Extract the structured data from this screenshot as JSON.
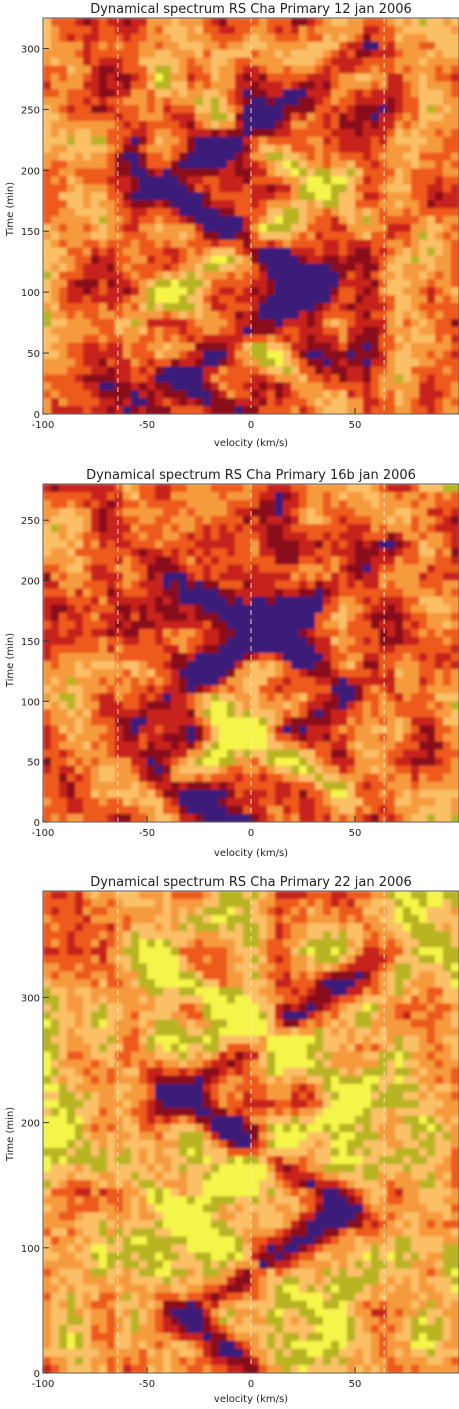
{
  "chart_data": [
    {
      "type": "heatmap",
      "title": "Dynamical spectrum  RS Cha Primary 12 jan 2006",
      "xlabel": "velocity (km/s)",
      "ylabel": "Time (min)",
      "xlim": [
        -100,
        100
      ],
      "ylim": [
        0,
        325
      ],
      "xticks": [
        -100,
        -50,
        0,
        50
      ],
      "yticks": [
        0,
        50,
        100,
        150,
        200,
        250,
        300
      ],
      "reference_lines_x": [
        -64,
        0,
        64
      ],
      "colorscale": [
        "#3a1c78",
        "#8a0f1c",
        "#c8201c",
        "#ee5a1c",
        "#f59a3c",
        "#fbbf66",
        "#b8b424",
        "#f4f44a"
      ],
      "seed": 12,
      "background_level": 0.42,
      "bands": [
        {
          "t0": 20,
          "v0": -30,
          "slope": 1.05,
          "dir": -1
        },
        {
          "t0": 95,
          "v0": -40,
          "slope": 0.95,
          "dir": -1
        },
        {
          "t0": 170,
          "v0": -30,
          "slope": 1.0,
          "dir": -1
        },
        {
          "t0": 250,
          "v0": -20,
          "slope": 1.1,
          "dir": -1
        },
        {
          "t0": 60,
          "v0": -10,
          "slope": 1.0,
          "dir": 1
        },
        {
          "t0": 140,
          "v0": -5,
          "slope": 1.0,
          "dir": 1
        },
        {
          "t0": 220,
          "v0": -15,
          "slope": 1.0,
          "dir": 1
        }
      ]
    },
    {
      "type": "heatmap",
      "title": "Dynamical spectrum  RS Cha Primary 16b jan 2006",
      "xlabel": "velocity (km/s)",
      "ylabel": "Time (min)",
      "xlim": [
        -100,
        100
      ],
      "ylim": [
        0,
        280
      ],
      "xticks": [
        -100,
        -50,
        0,
        50
      ],
      "yticks": [
        0,
        50,
        100,
        150,
        200,
        250
      ],
      "reference_lines_x": [
        -64,
        0,
        64
      ],
      "colorscale": [
        "#3a1c78",
        "#8a0f1c",
        "#c8201c",
        "#ee5a1c",
        "#f59a3c",
        "#fbbf66",
        "#b8b424",
        "#f4f44a"
      ],
      "seed": 16,
      "background_level": 0.4,
      "bands": [
        {
          "t0": 30,
          "v0": -40,
          "slope": 1.0,
          "dir": -1
        },
        {
          "t0": 110,
          "v0": -35,
          "slope": 1.0,
          "dir": -1
        },
        {
          "t0": 190,
          "v0": -25,
          "slope": 1.0,
          "dir": -1
        },
        {
          "t0": 70,
          "v0": -5,
          "slope": 1.0,
          "dir": 1
        },
        {
          "t0": 150,
          "v0": 0,
          "slope": 1.0,
          "dir": 1
        }
      ]
    },
    {
      "type": "heatmap",
      "title": "Dynamical spectrum  RS Cha Primary 22 jan 2006",
      "xlabel": "velocity (km/s)",
      "ylabel": "Time (min)",
      "xlim": [
        -100,
        100
      ],
      "ylim": [
        0,
        385
      ],
      "xticks": [
        -100,
        -50,
        0,
        50
      ],
      "yticks": [
        0,
        100,
        200,
        300
      ],
      "reference_lines_x": [
        -64,
        0,
        64
      ],
      "colorscale": [
        "#3a1c78",
        "#8a0f1c",
        "#c8201c",
        "#ee5a1c",
        "#f59a3c",
        "#fbbf66",
        "#b8b424",
        "#f4f44a"
      ],
      "seed": 22,
      "background_level": 0.58,
      "bands": [
        {
          "t0": 30,
          "v0": -20,
          "slope": 1.1,
          "dir": -1
        },
        {
          "t0": 120,
          "v0": -30,
          "slope": 1.0,
          "dir": -1
        },
        {
          "t0": 210,
          "v0": -25,
          "slope": 1.0,
          "dir": -1
        },
        {
          "t0": 300,
          "v0": -20,
          "slope": 1.0,
          "dir": -1
        },
        {
          "t0": 80,
          "v0": 0,
          "slope": 1.0,
          "dir": 1
        },
        {
          "t0": 170,
          "v0": 5,
          "slope": 1.0,
          "dir": 1
        },
        {
          "t0": 260,
          "v0": 0,
          "slope": 1.0,
          "dir": 1
        }
      ]
    }
  ]
}
